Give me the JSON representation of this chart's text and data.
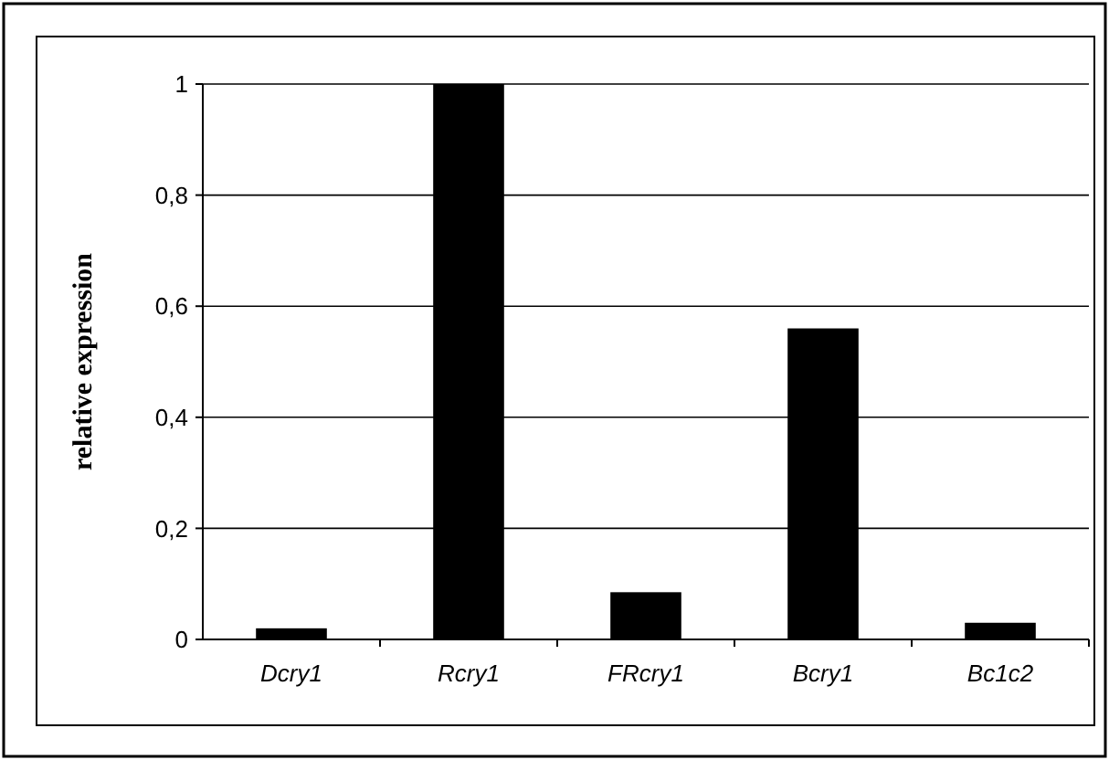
{
  "chart_data": {
    "type": "bar",
    "ylabel": "relative expression",
    "categories": [
      "Dcry1",
      "Rcry1",
      "FRcry1",
      "Bcry1",
      "Bc1c2"
    ],
    "values": [
      0.02,
      1,
      0.085,
      0.56,
      0.03
    ],
    "color": "#000000",
    "ylim": [
      0,
      1
    ],
    "yticks": [
      0,
      {
        "value": 0.2,
        "label": "0,2"
      },
      {
        "value": 0.4,
        "label": "0,4"
      },
      {
        "value": 0.6,
        "label": "0,6"
      },
      {
        "value": 0.8,
        "label": "0,8"
      },
      1
    ],
    "grid": "y"
  }
}
